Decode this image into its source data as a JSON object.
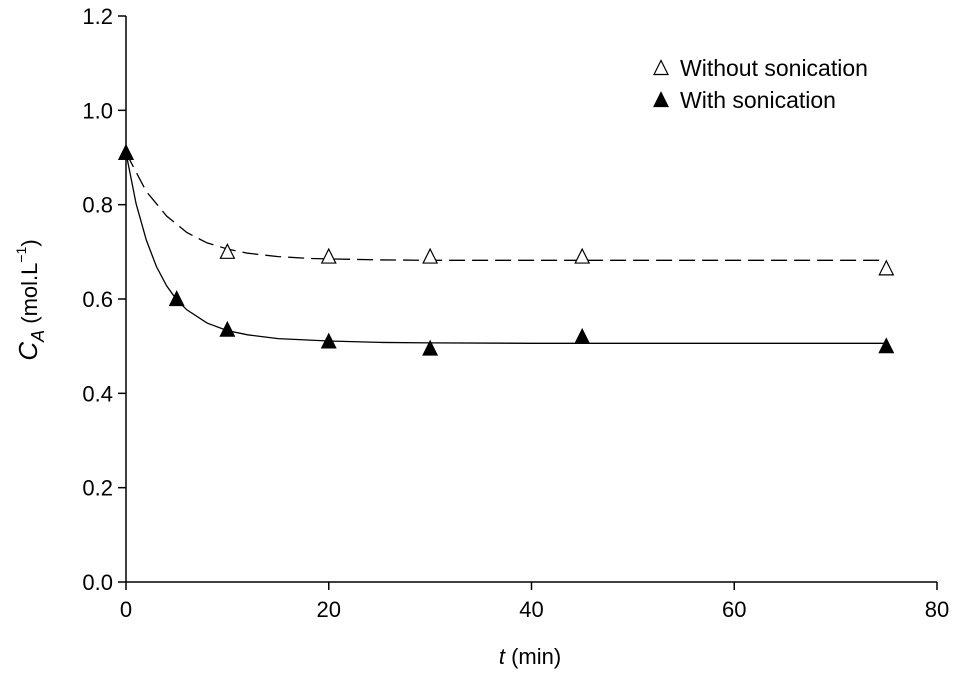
{
  "chart_data": {
    "type": "scatter",
    "xlabel": {
      "var": "t",
      "unit": " (min)"
    },
    "ylabel": {
      "var": "C",
      "sub": "A",
      "unit": " (mol.L",
      "sup": "−1",
      "close": ")"
    },
    "xlim": [
      0,
      80
    ],
    "ylim": [
      0,
      1.2
    ],
    "xticks": [
      0,
      20,
      40,
      60,
      80
    ],
    "xtick_labels": [
      "0",
      "20",
      "40",
      "60",
      "80"
    ],
    "yticks": [
      0,
      0.2,
      0.4,
      0.6,
      0.8,
      1.0,
      1.2
    ],
    "ytick_labels": [
      "0.0",
      "0.2",
      "0.4",
      "0.6",
      "0.8",
      "1.0",
      "1.2"
    ],
    "grid": false,
    "legend_position": "top-right",
    "series": [
      {
        "name": "Without sonication",
        "marker": "triangle-open",
        "line_style": "dashed",
        "color": "#000000",
        "x": [
          0,
          10,
          20,
          30,
          45,
          75
        ],
        "y": [
          0.91,
          0.7,
          0.69,
          0.69,
          0.69,
          0.665
        ],
        "fit_curve": {
          "x": [
            0,
            2,
            4,
            6,
            8,
            10,
            12,
            15,
            18,
            20,
            25,
            30,
            40,
            50,
            60,
            75
          ],
          "y": [
            0.91,
            0.828,
            0.776,
            0.741,
            0.719,
            0.706,
            0.697,
            0.69,
            0.686,
            0.685,
            0.683,
            0.682,
            0.682,
            0.682,
            0.682,
            0.682
          ]
        }
      },
      {
        "name": "With sonication",
        "marker": "triangle-filled",
        "line_style": "solid",
        "color": "#000000",
        "x": [
          0,
          5,
          10,
          20,
          30,
          45,
          75
        ],
        "y": [
          0.91,
          0.6,
          0.535,
          0.51,
          0.495,
          0.52,
          0.5
        ],
        "fit_curve": {
          "x": [
            0,
            1,
            2,
            3,
            4,
            5,
            6,
            8,
            10,
            12,
            15,
            20,
            25,
            30,
            40,
            50,
            60,
            75
          ],
          "y": [
            0.91,
            0.802,
            0.725,
            0.669,
            0.628,
            0.598,
            0.577,
            0.549,
            0.533,
            0.524,
            0.516,
            0.511,
            0.508,
            0.507,
            0.506,
            0.506,
            0.506,
            0.506
          ]
        }
      }
    ]
  }
}
